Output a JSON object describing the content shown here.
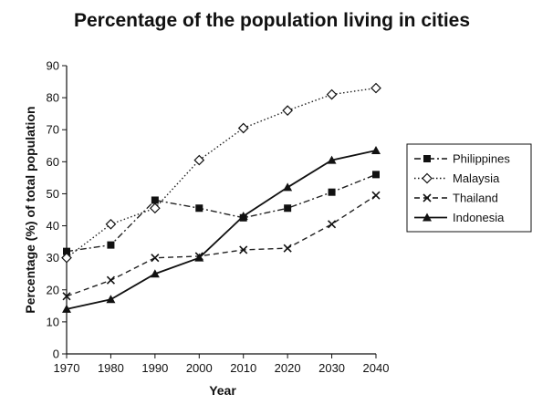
{
  "chart_data": {
    "type": "line",
    "title": "Percentage of the population living in cities",
    "xlabel": "Year",
    "ylabel": "Percentage (%) of total population",
    "x": [
      1970,
      1980,
      1990,
      2000,
      2010,
      2020,
      2030,
      2040
    ],
    "ylim": [
      0,
      90
    ],
    "yticks": [
      0,
      10,
      20,
      30,
      40,
      50,
      60,
      70,
      80,
      90
    ],
    "grid": false,
    "legend_position": "right",
    "series": [
      {
        "name": "Philippines",
        "values": [
          32,
          34,
          48,
          45.5,
          42.5,
          45.5,
          50.5,
          56
        ],
        "marker": "square",
        "dash": "dash-dot",
        "color": "#222222"
      },
      {
        "name": "Malaysia",
        "values": [
          30,
          40.5,
          45.5,
          60.5,
          70.5,
          76,
          81,
          83
        ],
        "marker": "diamond",
        "dash": "dotted",
        "color": "#222222"
      },
      {
        "name": "Thailand",
        "values": [
          18,
          23,
          30,
          30.5,
          32.5,
          33,
          40.5,
          49.5
        ],
        "marker": "x",
        "dash": "dashed",
        "color": "#222222"
      },
      {
        "name": "Indonesia",
        "values": [
          14,
          17,
          25,
          30,
          43,
          52,
          60.5,
          63.5
        ],
        "marker": "triangle",
        "dash": "solid",
        "color": "#111111"
      }
    ]
  }
}
